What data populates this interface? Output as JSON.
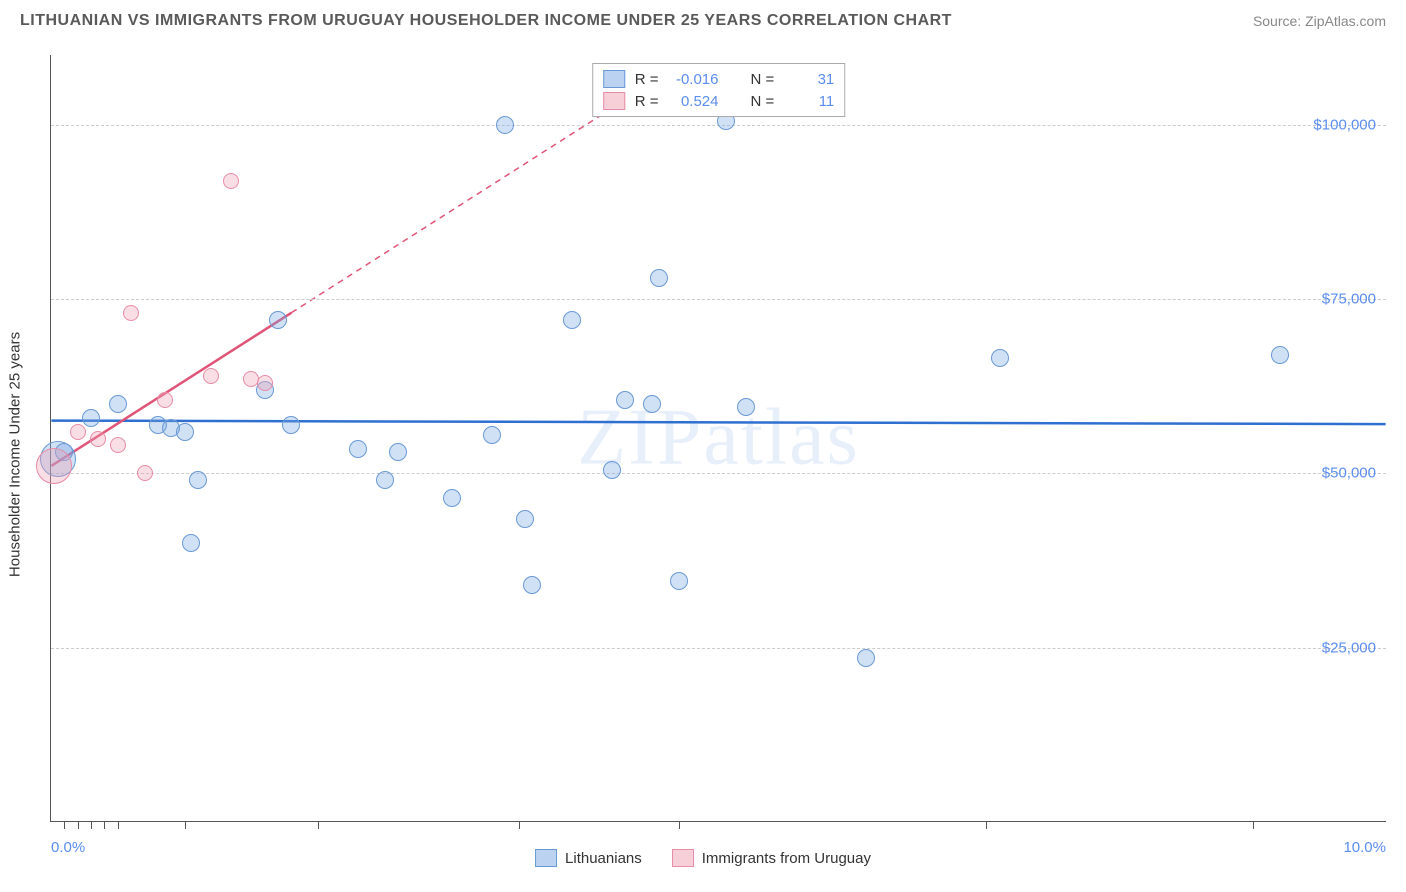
{
  "title": "LITHUANIAN VS IMMIGRANTS FROM URUGUAY HOUSEHOLDER INCOME UNDER 25 YEARS CORRELATION CHART",
  "source": "Source: ZipAtlas.com",
  "watermark": "ZIPatlas",
  "y_axis_label": "Householder Income Under 25 years",
  "chart": {
    "type": "scatter",
    "background_color": "#ffffff",
    "grid_color": "#cccccc",
    "x": {
      "min_label": "0.0%",
      "max_label": "10.0%",
      "min": 0,
      "max": 10,
      "ticks_pct": [
        1,
        2,
        3,
        4,
        5,
        10,
        20,
        35,
        47,
        70,
        90
      ]
    },
    "y": {
      "min": 0,
      "max": 110000,
      "gridlines": [
        {
          "value": 25000,
          "label": "$25,000"
        },
        {
          "value": 50000,
          "label": "$50,000"
        },
        {
          "value": 75000,
          "label": "$75,000"
        },
        {
          "value": 100000,
          "label": "$100,000"
        }
      ]
    },
    "series": [
      {
        "name": "Lithuanians",
        "color_fill": "rgba(120,165,225,0.35)",
        "color_stroke": "#6a9ad5",
        "marker_radius": 9,
        "R": "-0.016",
        "N": "31",
        "trend": {
          "x1": 0,
          "y1": 57500,
          "x2": 10,
          "y2": 57000,
          "color": "#2f6fd0",
          "dash": false
        },
        "points": [
          {
            "x": 0.05,
            "y": 52000,
            "r": 18
          },
          {
            "x": 0.1,
            "y": 53000
          },
          {
            "x": 0.3,
            "y": 58000
          },
          {
            "x": 0.5,
            "y": 60000
          },
          {
            "x": 0.8,
            "y": 57000
          },
          {
            "x": 0.9,
            "y": 56500
          },
          {
            "x": 1.0,
            "y": 56000
          },
          {
            "x": 1.05,
            "y": 40000
          },
          {
            "x": 1.1,
            "y": 49000
          },
          {
            "x": 1.6,
            "y": 62000
          },
          {
            "x": 1.7,
            "y": 72000
          },
          {
            "x": 1.8,
            "y": 57000
          },
          {
            "x": 2.3,
            "y": 53500
          },
          {
            "x": 2.5,
            "y": 49000
          },
          {
            "x": 2.6,
            "y": 53000
          },
          {
            "x": 3.0,
            "y": 46500
          },
          {
            "x": 3.3,
            "y": 55500
          },
          {
            "x": 3.4,
            "y": 100000
          },
          {
            "x": 3.55,
            "y": 43500
          },
          {
            "x": 3.6,
            "y": 34000
          },
          {
            "x": 3.9,
            "y": 72000
          },
          {
            "x": 4.2,
            "y": 50500
          },
          {
            "x": 4.3,
            "y": 60500
          },
          {
            "x": 4.5,
            "y": 60000
          },
          {
            "x": 4.55,
            "y": 78000
          },
          {
            "x": 4.7,
            "y": 34500
          },
          {
            "x": 5.2,
            "y": 59500
          },
          {
            "x": 5.05,
            "y": 100500
          },
          {
            "x": 6.1,
            "y": 23500
          },
          {
            "x": 7.1,
            "y": 66500
          },
          {
            "x": 9.2,
            "y": 67000
          }
        ]
      },
      {
        "name": "Immigrants from Uruguay",
        "color_fill": "rgba(240,160,180,0.35)",
        "color_stroke": "#e78ca5",
        "marker_radius": 8,
        "R": "0.524",
        "N": "11",
        "trend": {
          "x1": 0,
          "y1": 51000,
          "x2": 1.8,
          "y2": 73000,
          "color": "#e05577",
          "dash": false,
          "extend": {
            "x2": 4.5,
            "y2": 106000,
            "dash": true
          }
        },
        "points": [
          {
            "x": 0.02,
            "y": 51000,
            "r": 18
          },
          {
            "x": 0.2,
            "y": 56000
          },
          {
            "x": 0.35,
            "y": 55000
          },
          {
            "x": 0.5,
            "y": 54000
          },
          {
            "x": 0.6,
            "y": 73000
          },
          {
            "x": 0.7,
            "y": 50000
          },
          {
            "x": 0.85,
            "y": 60500
          },
          {
            "x": 1.2,
            "y": 64000
          },
          {
            "x": 1.35,
            "y": 92000
          },
          {
            "x": 1.5,
            "y": 63500
          },
          {
            "x": 1.6,
            "y": 63000
          }
        ]
      }
    ]
  },
  "legend_bottom": [
    {
      "swatch": "blue",
      "label": "Lithuanians"
    },
    {
      "swatch": "pink",
      "label": "Immigrants from Uruguay"
    }
  ],
  "stats_legend": {
    "r_label": "R =",
    "n_label": "N ="
  }
}
